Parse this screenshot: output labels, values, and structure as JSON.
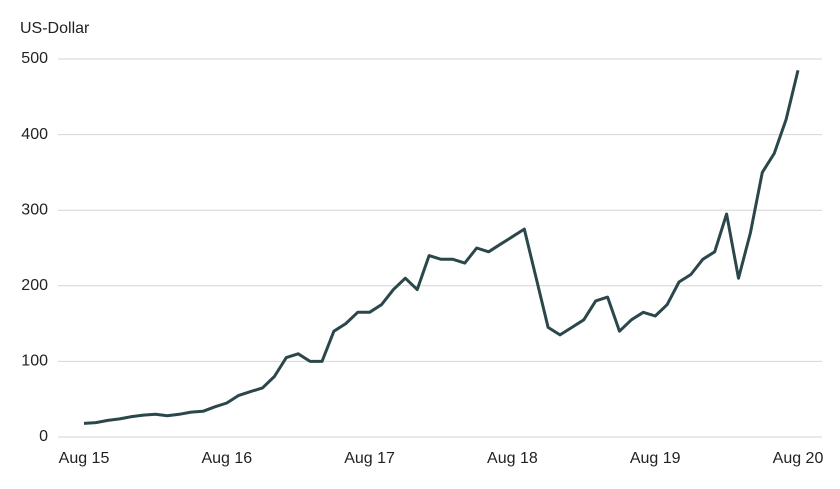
{
  "chart_data": {
    "type": "line",
    "y_label": "US-Dollar",
    "categories": [
      "Aug 15",
      null,
      null,
      null,
      null,
      null,
      null,
      null,
      null,
      null,
      null,
      null,
      "Aug 16",
      null,
      null,
      null,
      null,
      null,
      null,
      null,
      null,
      null,
      null,
      null,
      "Aug 17",
      null,
      null,
      null,
      null,
      null,
      null,
      null,
      null,
      null,
      null,
      null,
      "Aug 18",
      null,
      null,
      null,
      null,
      null,
      null,
      null,
      null,
      null,
      null,
      null,
      "Aug 19",
      null,
      null,
      null,
      null,
      null,
      null,
      null,
      null,
      null,
      null,
      null,
      "Aug 20"
    ],
    "values": [
      18,
      19,
      22,
      24,
      27,
      29,
      30,
      28,
      30,
      33,
      34,
      40,
      45,
      55,
      60,
      65,
      80,
      105,
      110,
      100,
      100,
      140,
      150,
      165,
      165,
      175,
      195,
      210,
      195,
      240,
      235,
      235,
      230,
      250,
      245,
      255,
      265,
      275,
      210,
      145,
      135,
      145,
      155,
      180,
      185,
      140,
      155,
      165,
      160,
      175,
      205,
      215,
      235,
      245,
      295,
      210,
      270,
      350,
      375,
      420,
      485
    ],
    "color": "#2b474b",
    "ylim": [
      0,
      500
    ],
    "yticks": [
      0,
      100,
      200,
      300,
      400,
      500
    ],
    "grid": true
  }
}
